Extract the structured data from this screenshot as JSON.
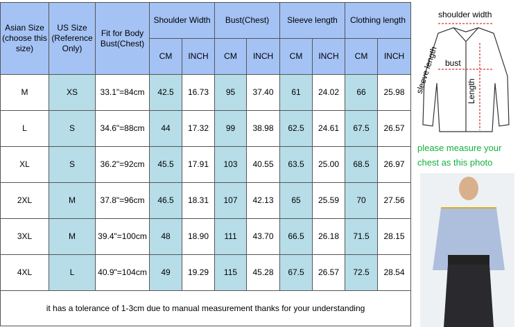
{
  "table": {
    "header_top": [
      "Asian Size (choose this size)",
      "US Size (Reference Only)",
      "Fit for Body Bust(Chest)",
      "Shoulder Width",
      "Bust(Chest)",
      "Sleeve length",
      "Clothing length"
    ],
    "header_units": [
      "CM",
      "INCH",
      "CM",
      "INCH",
      "CM",
      "INCH",
      "CM",
      "INCH"
    ],
    "rows": [
      [
        "M",
        "XS",
        "33.1\"=84cm",
        "42.5",
        "16.73",
        "95",
        "37.40",
        "61",
        "24.02",
        "66",
        "25.98"
      ],
      [
        "L",
        "S",
        "34.6\"=88cm",
        "44",
        "17.32",
        "99",
        "38.98",
        "62.5",
        "24.61",
        "67.5",
        "26.57"
      ],
      [
        "XL",
        "S",
        "36.2\"=92cm",
        "45.5",
        "17.91",
        "103",
        "40.55",
        "63.5",
        "25.00",
        "68.5",
        "26.97"
      ],
      [
        "2XL",
        "M",
        "37.8\"=96cm",
        "46.5",
        "18.31",
        "107",
        "42.13",
        "65",
        "25.59",
        "70",
        "27.56"
      ],
      [
        "3XL",
        "M",
        "39.4\"=100cm",
        "48",
        "18.90",
        "111",
        "43.70",
        "66.5",
        "26.18",
        "71.5",
        "28.15"
      ],
      [
        "4XL",
        "L",
        "40.9\"=104cm",
        "49",
        "19.29",
        "115",
        "45.28",
        "67.5",
        "26.57",
        "72.5",
        "28.54"
      ]
    ],
    "note": "it has a tolerance of 1-3cm due to manual measurement thanks for your understanding"
  },
  "diagram": {
    "shoulder_label": "shoulder width",
    "bust_label": "bust",
    "sleeve_label": "sleeve length",
    "length_label": "Length"
  },
  "caption": "please measure your chest as this photo"
}
